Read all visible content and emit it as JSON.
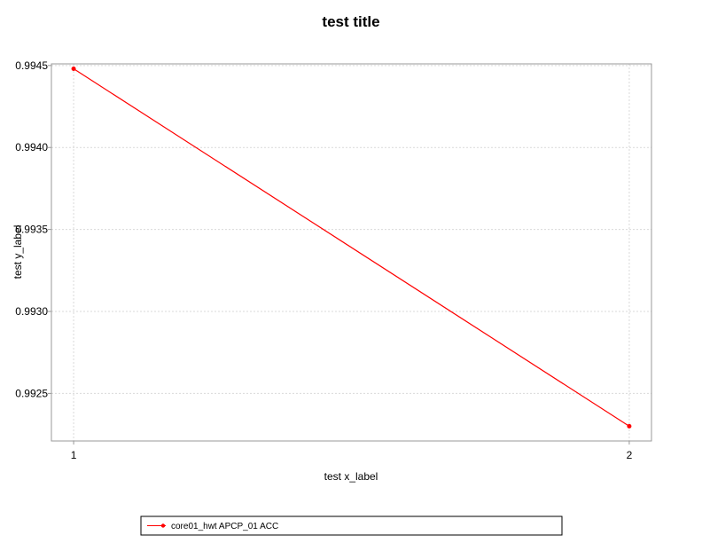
{
  "chart_data": {
    "type": "line",
    "title": "test title",
    "xlabel": "test x_label",
    "ylabel": "test y_label",
    "x": [
      1,
      2
    ],
    "x_ticks": [
      "1",
      "2"
    ],
    "y_ticks": [
      "0.9925",
      "0.9930",
      "0.9935",
      "0.9940",
      "0.9945"
    ],
    "xlim": [
      0.96,
      2.04
    ],
    "ylim": [
      0.99221,
      0.99451
    ],
    "grid": true,
    "legend_position": "bottom",
    "series": [
      {
        "name": "core01_hwt APCP_01 ACC",
        "color": "#ff0000",
        "values": [
          0.99448,
          0.9923
        ]
      }
    ]
  }
}
